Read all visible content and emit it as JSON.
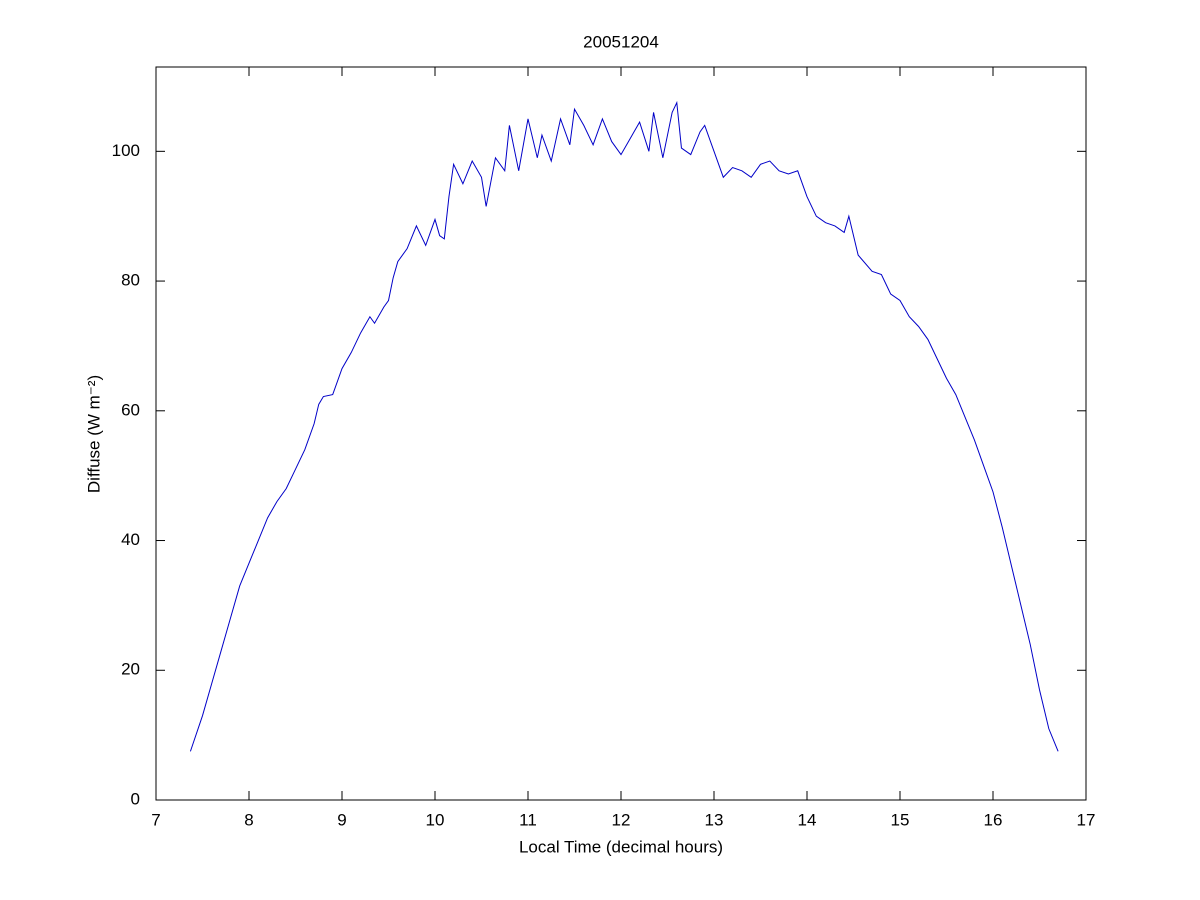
{
  "chart_data": {
    "type": "line",
    "title": "20051204",
    "xlabel": "Local Time (decimal hours)",
    "ylabel": "Diffuse (W m⁻²)",
    "xlim": [
      7,
      17
    ],
    "xticks": [
      7,
      8,
      9,
      10,
      11,
      12,
      13,
      14,
      15,
      16,
      17
    ],
    "ylim": [
      0,
      113
    ],
    "yticks": [
      0,
      20,
      40,
      60,
      80,
      100
    ],
    "grid": false,
    "series": [
      {
        "name": "Diffuse",
        "color": "#0000c8",
        "x": [
          7.37,
          7.5,
          7.6,
          7.7,
          7.8,
          7.9,
          8.0,
          8.1,
          8.2,
          8.3,
          8.4,
          8.5,
          8.6,
          8.7,
          8.75,
          8.8,
          8.9,
          9.0,
          9.1,
          9.2,
          9.3,
          9.35,
          9.45,
          9.5,
          9.55,
          9.6,
          9.7,
          9.8,
          9.9,
          10.0,
          10.05,
          10.1,
          10.15,
          10.2,
          10.3,
          10.4,
          10.5,
          10.55,
          10.65,
          10.75,
          10.8,
          10.9,
          11.0,
          11.1,
          11.15,
          11.25,
          11.35,
          11.45,
          11.5,
          11.6,
          11.7,
          11.8,
          11.9,
          12.0,
          12.1,
          12.2,
          12.3,
          12.35,
          12.45,
          12.55,
          12.6,
          12.65,
          12.75,
          12.85,
          12.9,
          13.0,
          13.1,
          13.2,
          13.3,
          13.4,
          13.5,
          13.6,
          13.7,
          13.8,
          13.9,
          14.0,
          14.1,
          14.2,
          14.3,
          14.4,
          14.45,
          14.5,
          14.55,
          14.7,
          14.8,
          14.9,
          15.0,
          15.1,
          15.2,
          15.3,
          15.4,
          15.5,
          15.6,
          15.7,
          15.8,
          15.9,
          16.0,
          16.1,
          16.2,
          16.3,
          16.4,
          16.5,
          16.6,
          16.7
        ],
        "values": [
          7.5,
          13,
          18,
          23,
          28,
          33,
          36.5,
          40,
          43.5,
          46,
          48,
          51,
          54,
          58,
          61,
          62.2,
          62.5,
          66.5,
          69,
          72,
          74.5,
          73.5,
          76,
          77,
          80.5,
          83,
          85,
          88.5,
          85.5,
          89.5,
          87,
          86.5,
          93,
          98,
          95,
          98.5,
          96,
          91.5,
          99,
          97,
          104,
          97,
          105,
          99,
          102.5,
          98.5,
          105,
          101,
          106.5,
          104,
          101,
          105,
          101.5,
          99.5,
          102,
          104.5,
          100,
          106,
          99,
          106,
          107.5,
          100.5,
          99.5,
          103,
          104,
          100,
          96,
          97.5,
          97,
          96,
          98,
          98.5,
          97,
          96.5,
          97,
          93,
          90,
          89,
          88.5,
          87.5,
          90,
          87,
          84,
          81.5,
          81,
          78,
          77,
          74.5,
          73,
          71,
          68,
          65,
          62.5,
          59,
          55.5,
          51.5,
          47.5,
          42,
          36,
          30,
          24,
          17,
          11,
          7.5
        ]
      }
    ]
  }
}
